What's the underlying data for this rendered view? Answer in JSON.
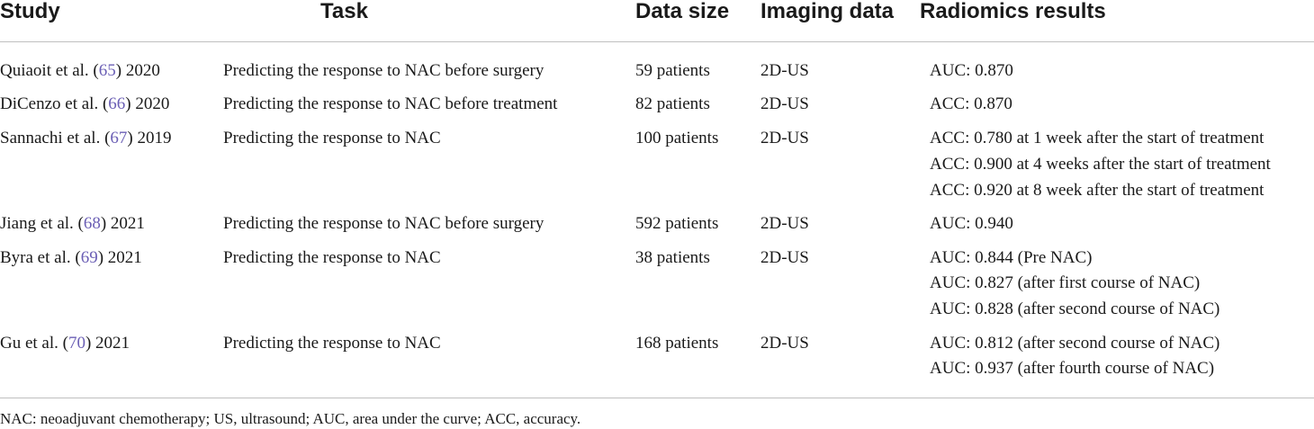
{
  "headers": {
    "study": "Study",
    "task": "Task",
    "data_size": "Data size",
    "imaging_data": "Imaging data",
    "radiomics_results": "Radiomics results"
  },
  "rows": [
    {
      "study_pre": "Quiaoit et al. (",
      "ref": "65",
      "study_post": ") 2020",
      "task": "Predicting the response to NAC before surgery",
      "data_size": "59 patients",
      "imaging": "2D-US",
      "results": [
        "AUC: 0.870"
      ]
    },
    {
      "study_pre": "DiCenzo et al. (",
      "ref": "66",
      "study_post": ") 2020",
      "task": "Predicting the response to NAC before treatment",
      "data_size": "82 patients",
      "imaging": "2D-US",
      "results": [
        "ACC: 0.870"
      ]
    },
    {
      "study_pre": "Sannachi et al. (",
      "ref": "67",
      "study_post": ") 2019",
      "task": "Predicting the response to NAC",
      "data_size": "100 patients",
      "imaging": "2D-US",
      "results": [
        "ACC: 0.780 at 1 week after the start of treatment",
        "ACC: 0.900 at 4 weeks after the start of treatment",
        "ACC: 0.920 at 8 week after the start of treatment"
      ]
    },
    {
      "study_pre": "Jiang et al. (",
      "ref": "68",
      "study_post": ") 2021",
      "task": "Predicting the response to NAC before surgery",
      "data_size": "592 patients",
      "imaging": "2D-US",
      "results": [
        "AUC: 0.940"
      ]
    },
    {
      "study_pre": "Byra et al. (",
      "ref": "69",
      "study_post": ") 2021",
      "task": "Predicting the response to NAC",
      "data_size": "38 patients",
      "imaging": "2D-US",
      "results": [
        "AUC: 0.844 (Pre NAC)",
        "AUC: 0.827 (after first course of NAC)",
        "AUC: 0.828 (after second course of NAC)"
      ]
    },
    {
      "study_pre": "Gu et al. (",
      "ref": "70",
      "study_post": ") 2021",
      "task": "Predicting the response to NAC",
      "data_size": "168 patients",
      "imaging": "2D-US",
      "results": [
        "AUC: 0.812 (after second course of NAC)",
        "AUC: 0.937 (after fourth course of NAC)"
      ]
    }
  ],
  "footnote": "NAC: neoadjuvant chemotherapy; US, ultrasound; AUC, area under the curve; ACC, accuracy.",
  "colors": {
    "reference_link": "#6b5fb5",
    "rule": "#bfbfbf"
  }
}
